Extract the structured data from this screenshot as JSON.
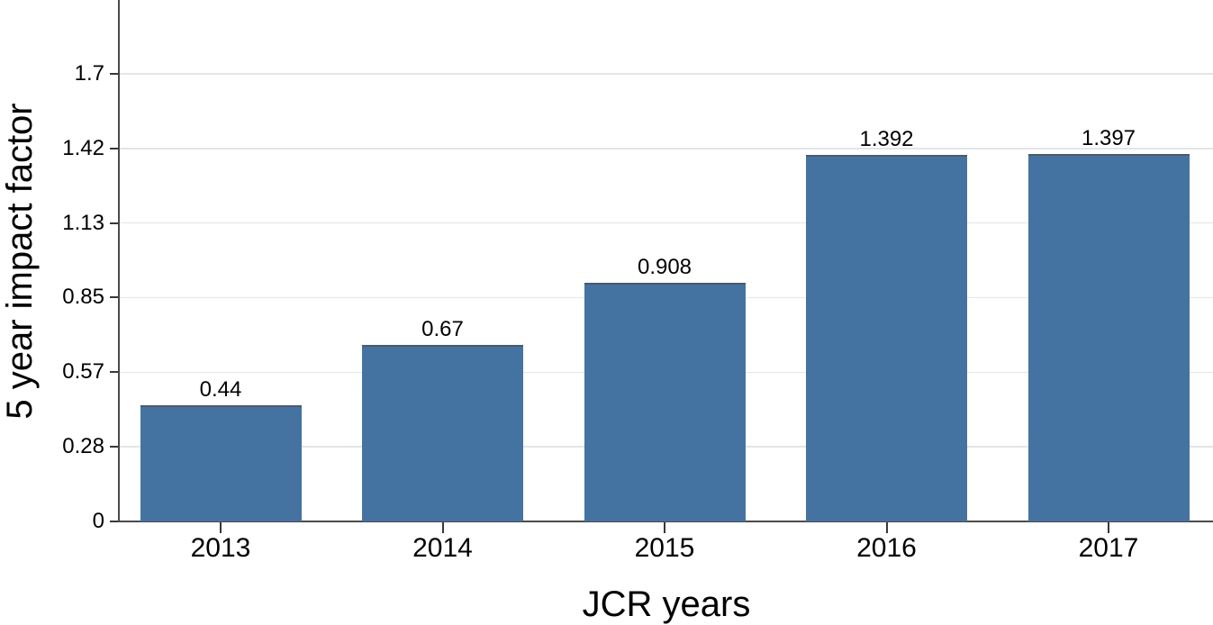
{
  "chart_data": {
    "type": "bar",
    "title": "",
    "xlabel": "JCR years",
    "ylabel": "5 year impact factor",
    "categories": [
      "2013",
      "2014",
      "2015",
      "2016",
      "2017"
    ],
    "values": [
      0.44,
      0.67,
      0.908,
      1.392,
      1.397
    ],
    "bar_labels": [
      "0.44",
      "0.67",
      "0.908",
      "1.392",
      "1.397"
    ],
    "yticks": [
      {
        "value": 0,
        "label": "0"
      },
      {
        "value": 0.2833,
        "label": "0.28"
      },
      {
        "value": 0.5667,
        "label": "0.57"
      },
      {
        "value": 0.85,
        "label": "0.85"
      },
      {
        "value": 1.1333,
        "label": "1.13"
      },
      {
        "value": 1.4167,
        "label": "1.42"
      },
      {
        "value": 1.7,
        "label": "1.7"
      }
    ],
    "ylim": [
      0,
      1.98
    ],
    "grid": "horizontal",
    "legend": "none",
    "colors": {
      "bar": "#4573a1",
      "bar_top_edge": "#4b5a6b",
      "axis": "#4a4a4a",
      "tick": "#383838",
      "gridline": "#e3e5e7",
      "text": "#000000"
    }
  }
}
